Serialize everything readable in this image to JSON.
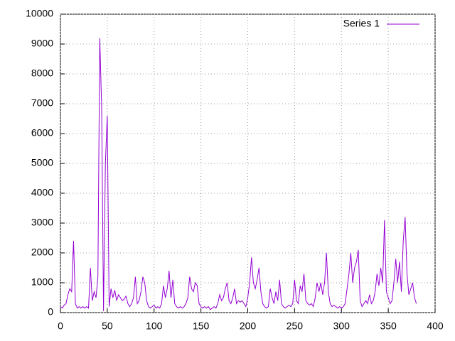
{
  "chart_data": {
    "type": "line",
    "x": [
      0,
      2,
      4,
      6,
      8,
      10,
      12,
      14,
      16,
      18,
      20,
      22,
      24,
      26,
      28,
      30,
      32,
      34,
      36,
      38,
      40,
      42,
      44,
      46,
      48,
      50,
      52,
      54,
      56,
      58,
      60,
      62,
      64,
      66,
      68,
      70,
      72,
      74,
      76,
      78,
      80,
      82,
      84,
      86,
      88,
      90,
      92,
      94,
      96,
      98,
      100,
      102,
      104,
      106,
      108,
      110,
      112,
      114,
      116,
      118,
      120,
      122,
      124,
      126,
      128,
      130,
      132,
      134,
      136,
      138,
      140,
      142,
      144,
      146,
      148,
      150,
      152,
      154,
      156,
      158,
      160,
      162,
      164,
      166,
      168,
      170,
      172,
      174,
      176,
      178,
      180,
      182,
      184,
      186,
      188,
      190,
      192,
      194,
      196,
      198,
      200,
      202,
      204,
      206,
      208,
      210,
      212,
      214,
      216,
      218,
      220,
      222,
      224,
      226,
      228,
      230,
      232,
      234,
      236,
      238,
      240,
      242,
      244,
      246,
      248,
      250,
      252,
      254,
      256,
      258,
      260,
      262,
      264,
      266,
      268,
      270,
      272,
      274,
      276,
      278,
      280,
      282,
      284,
      286,
      288,
      290,
      292,
      294,
      296,
      298,
      300,
      302,
      304,
      306,
      308,
      310,
      312,
      314,
      316,
      318,
      320,
      322,
      324,
      326,
      328,
      330,
      332,
      334,
      336,
      338,
      340,
      342,
      344,
      346,
      348,
      350,
      352,
      354,
      356,
      358,
      360,
      362,
      364,
      366,
      368,
      370,
      372,
      374,
      376,
      378,
      380
    ],
    "series": [
      {
        "name": "Series 1",
        "color": "#9400d3",
        "values": [
          200,
          150,
          250,
          300,
          600,
          800,
          700,
          2400,
          300,
          150,
          200,
          150,
          200,
          150,
          200,
          150,
          1500,
          400,
          700,
          500,
          1200,
          9200,
          6900,
          50,
          5000,
          6600,
          200,
          800,
          500,
          750,
          400,
          600,
          500,
          400,
          450,
          550,
          300,
          200,
          300,
          500,
          1200,
          300,
          400,
          700,
          1200,
          1000,
          400,
          200,
          150,
          200,
          250,
          150,
          200,
          150,
          300,
          900,
          500,
          800,
          1400,
          500,
          1100,
          300,
          200,
          150,
          200,
          150,
          200,
          300,
          500,
          1200,
          800,
          700,
          1000,
          900,
          300,
          200,
          150,
          200,
          150,
          200,
          100,
          150,
          200,
          150,
          300,
          600,
          400,
          500,
          800,
          1000,
          400,
          300,
          500,
          800,
          300,
          400,
          350,
          400,
          300,
          200,
          500,
          1000,
          1850,
          1000,
          800,
          1100,
          1500,
          700,
          300,
          200,
          150,
          200,
          800,
          500,
          300,
          700,
          400,
          1100,
          300,
          200,
          150,
          200,
          250,
          200,
          300,
          1100,
          400,
          300,
          900,
          700,
          1300,
          400,
          300,
          250,
          300,
          200,
          500,
          1000,
          700,
          1000,
          600,
          1000,
          2000,
          700,
          300,
          200,
          250,
          200,
          150,
          200,
          150,
          200,
          300,
          800,
          1300,
          2000,
          1000,
          1500,
          1700,
          2100,
          400,
          200,
          300,
          400,
          300,
          600,
          300,
          400,
          700,
          1300,
          900,
          1500,
          1000,
          3100,
          700,
          500,
          300,
          400,
          1000,
          1800,
          1000,
          1700,
          700,
          2400,
          3200,
          1300,
          600,
          800,
          1000,
          500,
          300
        ]
      }
    ],
    "xlim": [
      0,
      400
    ],
    "xticks": [
      0,
      50,
      100,
      150,
      200,
      250,
      300,
      350,
      400
    ],
    "ylim": [
      0,
      10000
    ],
    "yticks": [
      0,
      1000,
      2000,
      3000,
      4000,
      5000,
      6000,
      7000,
      8000,
      9000,
      10000
    ],
    "grid": true,
    "legend": "top-right"
  }
}
